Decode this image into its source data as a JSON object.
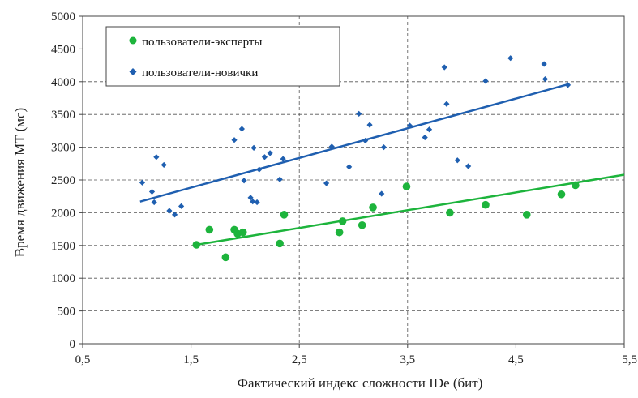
{
  "chart_data": {
    "type": "scatter",
    "title": "",
    "xlabel": "Фактический индекс сложности IDe (бит)",
    "ylabel": "Время движения MT (мс)",
    "xlim": [
      0.5,
      5.5
    ],
    "ylim": [
      0,
      5000
    ],
    "x_ticks": [
      "0,5",
      "1,5",
      "2,5",
      "3,5",
      "4,5",
      "5,5"
    ],
    "y_ticks": [
      "0",
      "500",
      "1000",
      "1500",
      "2000",
      "2500",
      "3000",
      "3500",
      "4000",
      "4500",
      "5000"
    ],
    "grid": "dashed",
    "legend_position": "top-left",
    "series": [
      {
        "name": "пользователи-эксперты",
        "color": "#1db43c",
        "marker": "circle",
        "points": [
          [
            1.55,
            1510
          ],
          [
            1.67,
            1740
          ],
          [
            1.82,
            1320
          ],
          [
            1.9,
            1740
          ],
          [
            1.93,
            1680
          ],
          [
            1.98,
            1700
          ],
          [
            2.32,
            1530
          ],
          [
            2.36,
            1970
          ],
          [
            2.87,
            1700
          ],
          [
            2.9,
            1870
          ],
          [
            3.08,
            1810
          ],
          [
            3.18,
            2080
          ],
          [
            3.49,
            2400
          ],
          [
            3.89,
            2000
          ],
          [
            4.22,
            2120
          ],
          [
            4.6,
            1970
          ],
          [
            4.92,
            2280
          ],
          [
            5.05,
            2420
          ]
        ],
        "trend": [
          [
            1.55,
            1510
          ],
          [
            5.5,
            2580
          ]
        ]
      },
      {
        "name": "пользователи-новички",
        "color": "#1f5fb0",
        "marker": "diamond",
        "points": [
          [
            1.05,
            2460
          ],
          [
            1.14,
            2320
          ],
          [
            1.16,
            2160
          ],
          [
            1.18,
            2850
          ],
          [
            1.25,
            2730
          ],
          [
            1.3,
            2030
          ],
          [
            1.35,
            1970
          ],
          [
            1.41,
            2100
          ],
          [
            1.9,
            3110
          ],
          [
            1.97,
            3280
          ],
          [
            1.99,
            2490
          ],
          [
            2.05,
            2230
          ],
          [
            2.07,
            2170
          ],
          [
            2.08,
            2990
          ],
          [
            2.11,
            2160
          ],
          [
            2.13,
            2660
          ],
          [
            2.18,
            2850
          ],
          [
            2.23,
            2910
          ],
          [
            2.32,
            2510
          ],
          [
            2.35,
            2820
          ],
          [
            2.75,
            2450
          ],
          [
            2.8,
            3010
          ],
          [
            2.96,
            2700
          ],
          [
            3.05,
            3510
          ],
          [
            3.11,
            3100
          ],
          [
            3.15,
            3340
          ],
          [
            3.26,
            2290
          ],
          [
            3.28,
            3000
          ],
          [
            3.52,
            3330
          ],
          [
            3.66,
            3150
          ],
          [
            3.7,
            3270
          ],
          [
            3.84,
            4220
          ],
          [
            3.86,
            3660
          ],
          [
            3.96,
            2800
          ],
          [
            4.06,
            2710
          ],
          [
            4.22,
            4010
          ],
          [
            4.45,
            4360
          ],
          [
            4.76,
            4270
          ],
          [
            4.77,
            4040
          ],
          [
            4.98,
            3950
          ]
        ],
        "trend": [
          [
            1.03,
            2170
          ],
          [
            4.98,
            3960
          ]
        ]
      }
    ]
  }
}
